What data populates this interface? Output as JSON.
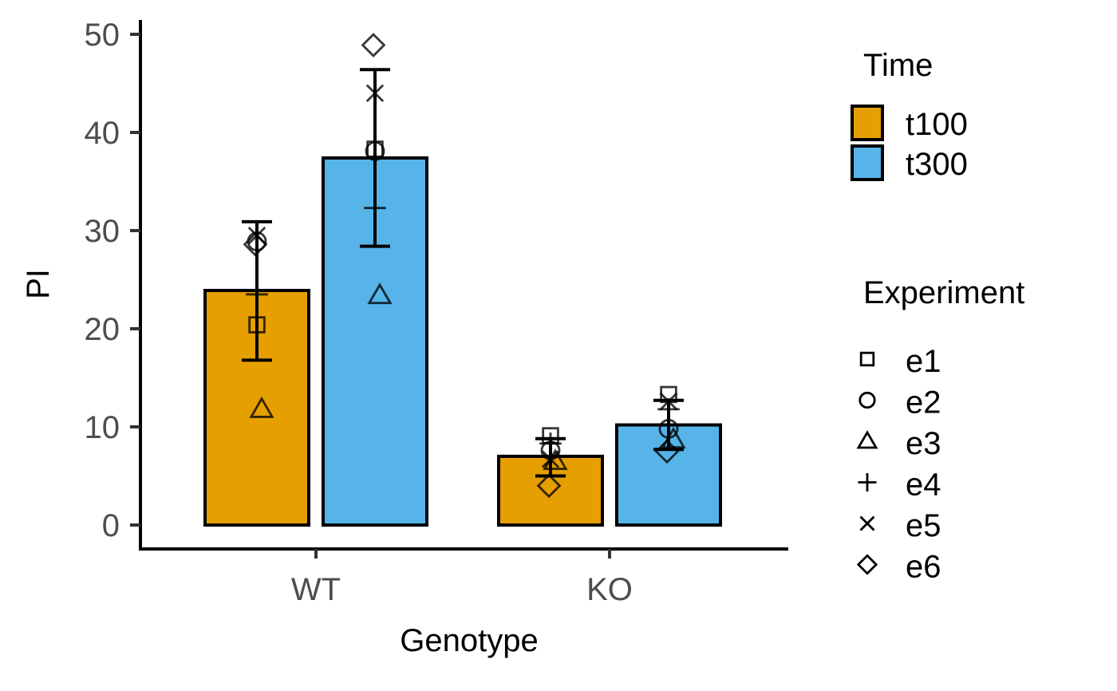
{
  "chart_data": {
    "type": "bar",
    "xlabel": "Genotype",
    "ylabel": "PI",
    "ylim": [
      0,
      50
    ],
    "yticks": [
      0,
      10,
      20,
      30,
      40,
      50
    ],
    "categories": [
      "WT",
      "KO"
    ],
    "legend_time": {
      "title": "Time",
      "entries": [
        "t100",
        "t300"
      ],
      "placement": "right"
    },
    "legend_experiment": {
      "title": "Experiment",
      "entries": [
        "e1",
        "e2",
        "e3",
        "e4",
        "e5",
        "e6"
      ],
      "placement": "right"
    },
    "series": [
      {
        "name": "t100",
        "color": "#E69F00",
        "values": [
          23.9,
          7.0
        ],
        "err_low": [
          16.8,
          5.0
        ],
        "err_high": [
          30.9,
          8.8
        ],
        "points": [
          {
            "e1": 20.4,
            "e2": 28.9,
            "e3": 11.8,
            "e4": 23.5,
            "e5": 29.5,
            "e6": 28.6
          },
          {
            "e1": 9.1,
            "e2": 7.6,
            "e3": 6.5,
            "e4": 8.3,
            "e5": 6.7,
            "e6": 4.0
          }
        ]
      },
      {
        "name": "t300",
        "color": "#56B4E9",
        "values": [
          37.4,
          10.2
        ],
        "err_low": [
          28.4,
          7.7
        ],
        "err_high": [
          46.4,
          12.7
        ],
        "points": [
          {
            "e1": 38.3,
            "e2": 38.1,
            "e3": 23.4,
            "e4": 32.3,
            "e5": 44.0,
            "e6": 48.9
          },
          {
            "e1": 13.3,
            "e2": 9.8,
            "e3": 8.7,
            "e4": 11.8,
            "e5": 12.6,
            "e6": 7.5
          }
        ]
      }
    ],
    "shapes": {
      "e1": "square",
      "e2": "circle",
      "e3": "triangle",
      "e4": "plus",
      "e5": "cross",
      "e6": "diamond"
    }
  }
}
